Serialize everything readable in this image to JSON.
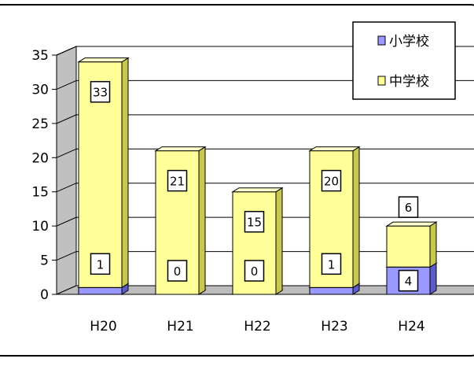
{
  "chart_data": {
    "type": "bar",
    "categories": [
      "H20",
      "H21",
      "H22",
      "H23",
      "H24"
    ],
    "ylim": [
      0,
      35
    ],
    "yticks": [
      0,
      5,
      10,
      15,
      20,
      25,
      30,
      35
    ],
    "series": [
      {
        "name": "小学校",
        "values": [
          1,
          0,
          0,
          1,
          4
        ],
        "color": "#9999ff"
      },
      {
        "name": "中学校",
        "values": [
          33,
          21,
          15,
          20,
          6
        ],
        "color": "#ffff99"
      }
    ],
    "legend_position": "top-right",
    "grid": true
  }
}
